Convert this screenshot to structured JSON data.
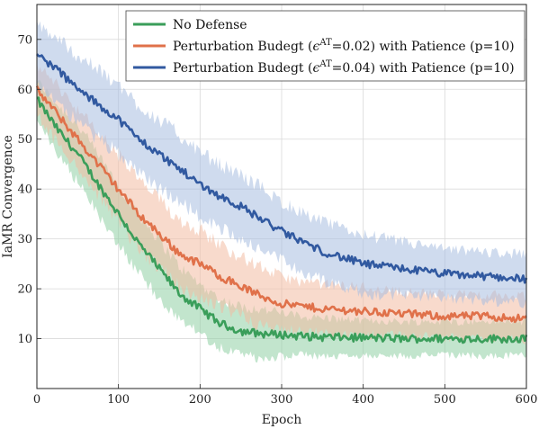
{
  "chart_data": {
    "type": "line",
    "xlabel": "Epoch",
    "ylabel": "IaMR Convergence",
    "xlim": [
      0,
      600
    ],
    "ylim": [
      0,
      77
    ],
    "x_ticks": [
      0,
      100,
      200,
      300,
      400,
      500,
      600
    ],
    "y_ticks": [
      10,
      20,
      30,
      40,
      50,
      60,
      70
    ],
    "grid": true,
    "legend_position": "top-right",
    "shaded_band": "variance band around each series",
    "series": [
      {
        "name": "No Defense",
        "color": "#3a9e5a",
        "band_color": "#8fd0a4",
        "x": [
          0,
          25,
          50,
          75,
          100,
          125,
          150,
          175,
          200,
          225,
          250,
          275,
          300,
          325,
          350,
          400,
          450,
          500,
          550,
          600
        ],
        "y": [
          58,
          52,
          47,
          41,
          35,
          29,
          24,
          19,
          16,
          13,
          11.5,
          11,
          10.8,
          10.5,
          10.3,
          10.2,
          10,
          10,
          10,
          10
        ],
        "band_halfwidth": [
          4,
          5,
          6,
          6,
          6,
          6,
          6,
          5.5,
          5,
          5,
          5,
          5,
          4.5,
          4,
          4,
          3.5,
          3.5,
          3.5,
          3.5,
          3.5
        ]
      },
      {
        "name": "Perturbation Budegt (ϵ^AT=0.02) with Patience (p=10)",
        "legend_prefix": "Perturbation Budegt (",
        "legend_symbol": "ϵ",
        "legend_superscript": "AT",
        "legend_suffix": "=0.02) with Patience (p=10)",
        "color": "#e0714a",
        "band_color": "#f3bba3",
        "x": [
          0,
          25,
          50,
          75,
          100,
          125,
          150,
          175,
          200,
          225,
          250,
          275,
          300,
          325,
          350,
          400,
          450,
          500,
          550,
          600
        ],
        "y": [
          60,
          55,
          50,
          45,
          40,
          35,
          31,
          27,
          25,
          22.5,
          20.5,
          18.5,
          17,
          16.5,
          16,
          15.5,
          15,
          14.5,
          14.5,
          14
        ],
        "band_halfwidth": [
          5,
          6,
          6,
          6.5,
          7,
          7,
          7,
          7,
          7,
          6.5,
          6,
          6,
          5.5,
          5,
          5,
          5,
          4.5,
          4.5,
          4.5,
          4.5
        ]
      },
      {
        "name": "Perturbation Budegt (ϵ^AT=0.04) with Patience (p=10)",
        "legend_prefix": "Perturbation Budegt (",
        "legend_symbol": "ϵ",
        "legend_superscript": "AT",
        "legend_suffix": "=0.04) with Patience (p=10)",
        "color": "#3159a0",
        "band_color": "#a8bde0",
        "x": [
          0,
          25,
          50,
          75,
          100,
          125,
          150,
          175,
          200,
          225,
          250,
          275,
          300,
          325,
          350,
          400,
          450,
          500,
          550,
          600
        ],
        "y": [
          67,
          64,
          60,
          57,
          54,
          50,
          47,
          44,
          41,
          38.5,
          36.5,
          34,
          31.5,
          29.5,
          27.5,
          25,
          24,
          23,
          22.5,
          22
        ],
        "band_halfwidth": [
          6,
          6.5,
          7,
          7,
          7,
          7,
          7,
          7,
          6.5,
          6.5,
          6.5,
          6.5,
          6,
          6,
          6,
          6,
          5.5,
          5,
          5,
          5
        ]
      }
    ]
  }
}
